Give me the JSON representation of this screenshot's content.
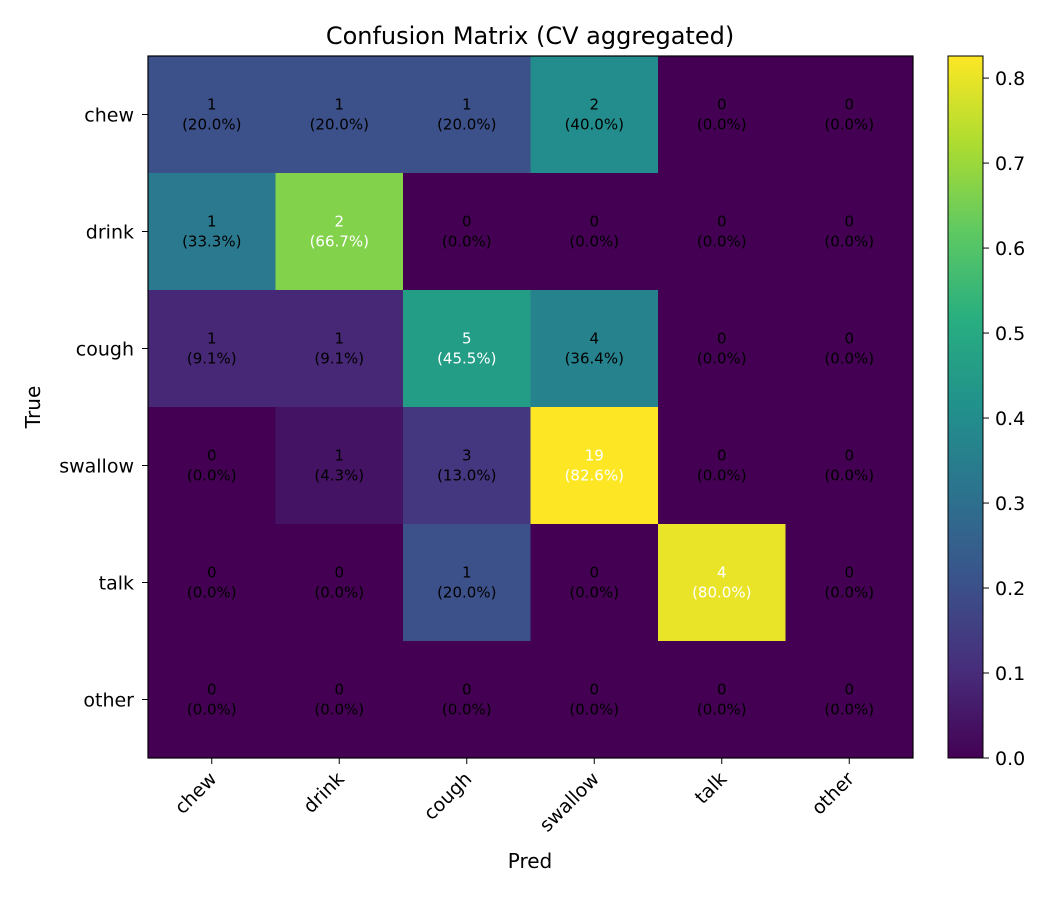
{
  "chart_data": {
    "type": "heatmap",
    "title": "Confusion Matrix (CV aggregated)",
    "xlabel": "Pred",
    "ylabel": "True",
    "x_categories": [
      "chew",
      "drink",
      "cough",
      "swallow",
      "talk",
      "other"
    ],
    "y_categories": [
      "chew",
      "drink",
      "cough",
      "swallow",
      "talk",
      "other"
    ],
    "counts": [
      [
        1,
        1,
        1,
        2,
        0,
        0
      ],
      [
        1,
        2,
        0,
        0,
        0,
        0
      ],
      [
        1,
        1,
        5,
        4,
        0,
        0
      ],
      [
        0,
        1,
        3,
        19,
        0,
        0
      ],
      [
        0,
        0,
        1,
        0,
        4,
        0
      ],
      [
        0,
        0,
        0,
        0,
        0,
        0
      ]
    ],
    "percents": [
      [
        "(20.0%)",
        "(20.0%)",
        "(20.0%)",
        "(40.0%)",
        "(0.0%)",
        "(0.0%)"
      ],
      [
        "(33.3%)",
        "(66.7%)",
        "(0.0%)",
        "(0.0%)",
        "(0.0%)",
        "(0.0%)"
      ],
      [
        "(9.1%)",
        "(9.1%)",
        "(45.5%)",
        "(36.4%)",
        "(0.0%)",
        "(0.0%)"
      ],
      [
        "(0.0%)",
        "(4.3%)",
        "(13.0%)",
        "(82.6%)",
        "(0.0%)",
        "(0.0%)"
      ],
      [
        "(0.0%)",
        "(0.0%)",
        "(20.0%)",
        "(0.0%)",
        "(80.0%)",
        "(0.0%)"
      ],
      [
        "(0.0%)",
        "(0.0%)",
        "(0.0%)",
        "(0.0%)",
        "(0.0%)",
        "(0.0%)"
      ]
    ],
    "values": [
      [
        0.2,
        0.2,
        0.2,
        0.4,
        0.0,
        0.0
      ],
      [
        0.333,
        0.667,
        0.0,
        0.0,
        0.0,
        0.0
      ],
      [
        0.091,
        0.091,
        0.455,
        0.364,
        0.0,
        0.0
      ],
      [
        0.0,
        0.043,
        0.13,
        0.826,
        0.0,
        0.0
      ],
      [
        0.0,
        0.0,
        0.2,
        0.0,
        0.8,
        0.0
      ],
      [
        0.0,
        0.0,
        0.0,
        0.0,
        0.0,
        0.0
      ]
    ],
    "colormap": "viridis",
    "colorbar": {
      "min": 0.0,
      "max": 0.826,
      "ticks": [
        0.0,
        0.1,
        0.2,
        0.3,
        0.4,
        0.5,
        0.6,
        0.7,
        0.8
      ],
      "tick_labels": [
        "0.0",
        "0.1",
        "0.2",
        "0.3",
        "0.4",
        "0.5",
        "0.6",
        "0.7",
        "0.8"
      ]
    },
    "text_threshold": 0.413,
    "text_color_dark": "#000000",
    "text_color_light": "#ffffff"
  }
}
